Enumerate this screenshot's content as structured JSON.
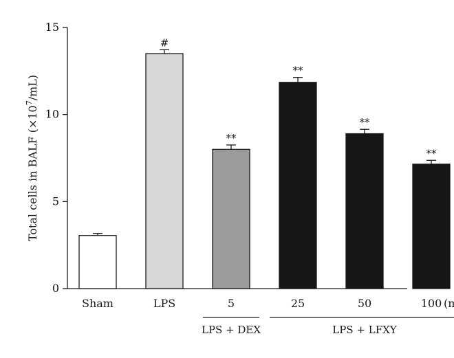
{
  "chart_data": {
    "type": "bar",
    "title": "",
    "ylabel_main": "Total cells in BALF (×10",
    "ylabel_sup": "7",
    "ylabel_tail": "/mL)",
    "xlabel": "",
    "ylim": [
      0,
      15
    ],
    "yticks": [
      "0",
      "5",
      "10",
      "15"
    ],
    "categories": [
      "Sham",
      "LPS",
      "5",
      "25",
      "50",
      "100"
    ],
    "unit_label": "(mg/kg)",
    "values": [
      3.05,
      13.5,
      8.0,
      11.85,
      8.9,
      7.15
    ],
    "errors": [
      0.12,
      0.22,
      0.25,
      0.28,
      0.25,
      0.22
    ],
    "colors": [
      "#ffffff",
      "#d8d8d8",
      "#9b9b9b",
      "#161616",
      "#161616",
      "#161616"
    ],
    "annotations": [
      "",
      "#",
      "**",
      "**",
      "**",
      "**"
    ],
    "groups": [
      {
        "label": "LPS + DEX",
        "from": 2,
        "to": 2
      },
      {
        "label": "LPS + LFXY",
        "from": 3,
        "to": 5
      }
    ],
    "grid": false,
    "legend": "none"
  }
}
